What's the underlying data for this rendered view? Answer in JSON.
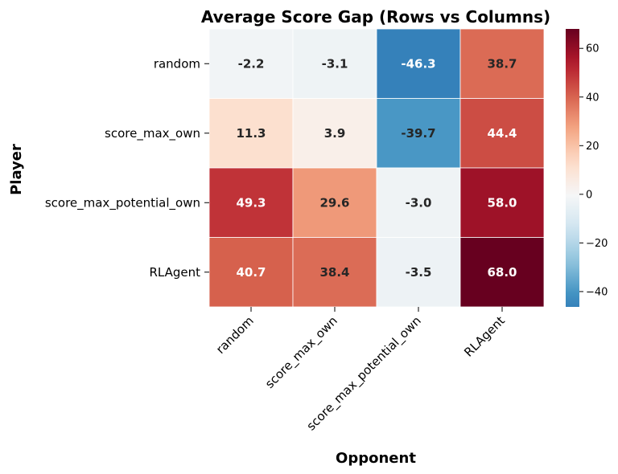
{
  "chart_data": {
    "type": "heatmap",
    "title": "Average Score Gap (Rows vs Columns)",
    "xlabel": "Opponent",
    "ylabel": "Player",
    "rows": [
      "random",
      "score_max_own",
      "score_max_potential_own",
      "RLAgent"
    ],
    "columns": [
      "random",
      "score_max_own",
      "score_max_potential_own",
      "RLAgent"
    ],
    "values": [
      [
        -2.2,
        -3.1,
        -46.3,
        38.7
      ],
      [
        11.3,
        3.9,
        -39.7,
        44.4
      ],
      [
        49.3,
        29.6,
        -3.0,
        58.0
      ],
      [
        40.7,
        38.4,
        -3.5,
        68.0
      ]
    ],
    "value_labels": [
      [
        "-2.2",
        "-3.1",
        "-46.3",
        "38.7"
      ],
      [
        "11.3",
        "3.9",
        "-39.7",
        "44.4"
      ],
      [
        "49.3",
        "29.6",
        "-3.0",
        "58.0"
      ],
      [
        "40.7",
        "38.4",
        "-3.5",
        "68.0"
      ]
    ],
    "colormap": "RdBu_r",
    "color_center": 0,
    "color_range": [
      -46.3,
      68.0
    ],
    "colorbar_ticks": [
      60,
      40,
      20,
      0,
      -20,
      -40
    ],
    "colorbar_tick_labels": [
      "60",
      "40",
      "20",
      "0",
      "−20",
      "−40"
    ],
    "grid": false
  }
}
